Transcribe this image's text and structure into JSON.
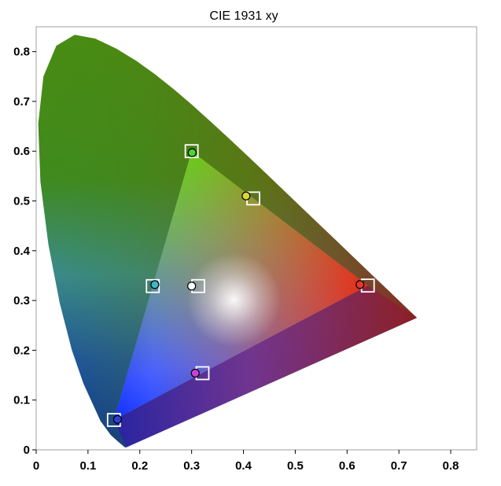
{
  "chart_data": {
    "type": "scatter",
    "title": "CIE 1931 xy",
    "xlabel": "",
    "ylabel": "",
    "xlim": [
      0,
      0.85
    ],
    "ylim": [
      0,
      0.85
    ],
    "x_ticks": [
      0,
      0.1,
      0.2,
      0.3,
      0.4,
      0.5,
      0.6,
      0.7,
      0.8
    ],
    "y_ticks": [
      0,
      0.1,
      0.2,
      0.3,
      0.4,
      0.5,
      0.6,
      0.7,
      0.8
    ],
    "x_tick_labels": [
      "0",
      "0.1",
      "0.2",
      "0.3",
      "0.4",
      "0.5",
      "0.6",
      "0.7",
      "0.8"
    ],
    "y_tick_labels": [
      "0",
      "0.1",
      "0.2",
      "0.3",
      "0.4",
      "0.5",
      "0.6",
      "0.7",
      "0.8"
    ],
    "grid": false,
    "spectral_locus": [
      [
        0.1741,
        0.005
      ],
      [
        0.1738,
        0.0049
      ],
      [
        0.1733,
        0.0048
      ],
      [
        0.1726,
        0.0048
      ],
      [
        0.1714,
        0.0051
      ],
      [
        0.1689,
        0.0069
      ],
      [
        0.1644,
        0.0109
      ],
      [
        0.1566,
        0.0177
      ],
      [
        0.144,
        0.0297
      ],
      [
        0.1241,
        0.0578
      ],
      [
        0.0913,
        0.1327
      ],
      [
        0.0687,
        0.2007
      ],
      [
        0.0454,
        0.295
      ],
      [
        0.0235,
        0.4127
      ],
      [
        0.0082,
        0.5384
      ],
      [
        0.0039,
        0.6548
      ],
      [
        0.0139,
        0.7502
      ],
      [
        0.0389,
        0.812
      ],
      [
        0.0743,
        0.8338
      ],
      [
        0.1142,
        0.8262
      ],
      [
        0.1547,
        0.8059
      ],
      [
        0.1929,
        0.7816
      ],
      [
        0.2296,
        0.7543
      ],
      [
        0.2658,
        0.7243
      ],
      [
        0.3016,
        0.6923
      ],
      [
        0.3373,
        0.6589
      ],
      [
        0.3731,
        0.6245
      ],
      [
        0.4087,
        0.5896
      ],
      [
        0.4441,
        0.5547
      ],
      [
        0.4788,
        0.5202
      ],
      [
        0.5125,
        0.4866
      ],
      [
        0.5448,
        0.4544
      ],
      [
        0.5752,
        0.4242
      ],
      [
        0.6029,
        0.3965
      ],
      [
        0.627,
        0.3725
      ],
      [
        0.6482,
        0.3514
      ],
      [
        0.6658,
        0.334
      ],
      [
        0.6801,
        0.3197
      ],
      [
        0.6915,
        0.3083
      ],
      [
        0.7006,
        0.2993
      ],
      [
        0.7079,
        0.292
      ],
      [
        0.714,
        0.2859
      ],
      [
        0.719,
        0.2809
      ],
      [
        0.723,
        0.277
      ],
      [
        0.726,
        0.274
      ],
      [
        0.7283,
        0.2717
      ],
      [
        0.73,
        0.27
      ],
      [
        0.7311,
        0.2689
      ],
      [
        0.732,
        0.268
      ],
      [
        0.7327,
        0.2673
      ],
      [
        0.7334,
        0.2666
      ],
      [
        0.734,
        0.266
      ],
      [
        0.7344,
        0.2656
      ],
      [
        0.7346,
        0.2654
      ],
      [
        0.7347,
        0.2653
      ]
    ],
    "target_gamut": [
      [
        0.3,
        0.6
      ],
      [
        0.15,
        0.06
      ],
      [
        0.64,
        0.33
      ]
    ],
    "series": [
      {
        "marker": "square",
        "points": [
          {
            "x": 0.3,
            "y": 0.6
          },
          {
            "x": 0.419,
            "y": 0.505
          },
          {
            "x": 0.64,
            "y": 0.33
          },
          {
            "x": 0.225,
            "y": 0.329
          },
          {
            "x": 0.3127,
            "y": 0.329
          },
          {
            "x": 0.321,
            "y": 0.154
          },
          {
            "x": 0.15,
            "y": 0.06
          }
        ]
      },
      {
        "marker": "circle",
        "points": [
          {
            "x": 0.301,
            "y": 0.597,
            "color": "#4cd62a"
          },
          {
            "x": 0.405,
            "y": 0.51,
            "color": "#d8d830"
          },
          {
            "x": 0.625,
            "y": 0.332,
            "color": "#e03a2c"
          },
          {
            "x": 0.229,
            "y": 0.332,
            "color": "#3ab9c8"
          },
          {
            "x": 0.3,
            "y": 0.329,
            "color": "#ffffff"
          },
          {
            "x": 0.307,
            "y": 0.154,
            "color": "#d040d8"
          },
          {
            "x": 0.157,
            "y": 0.061,
            "color": "#2a3fd6"
          }
        ]
      }
    ]
  }
}
